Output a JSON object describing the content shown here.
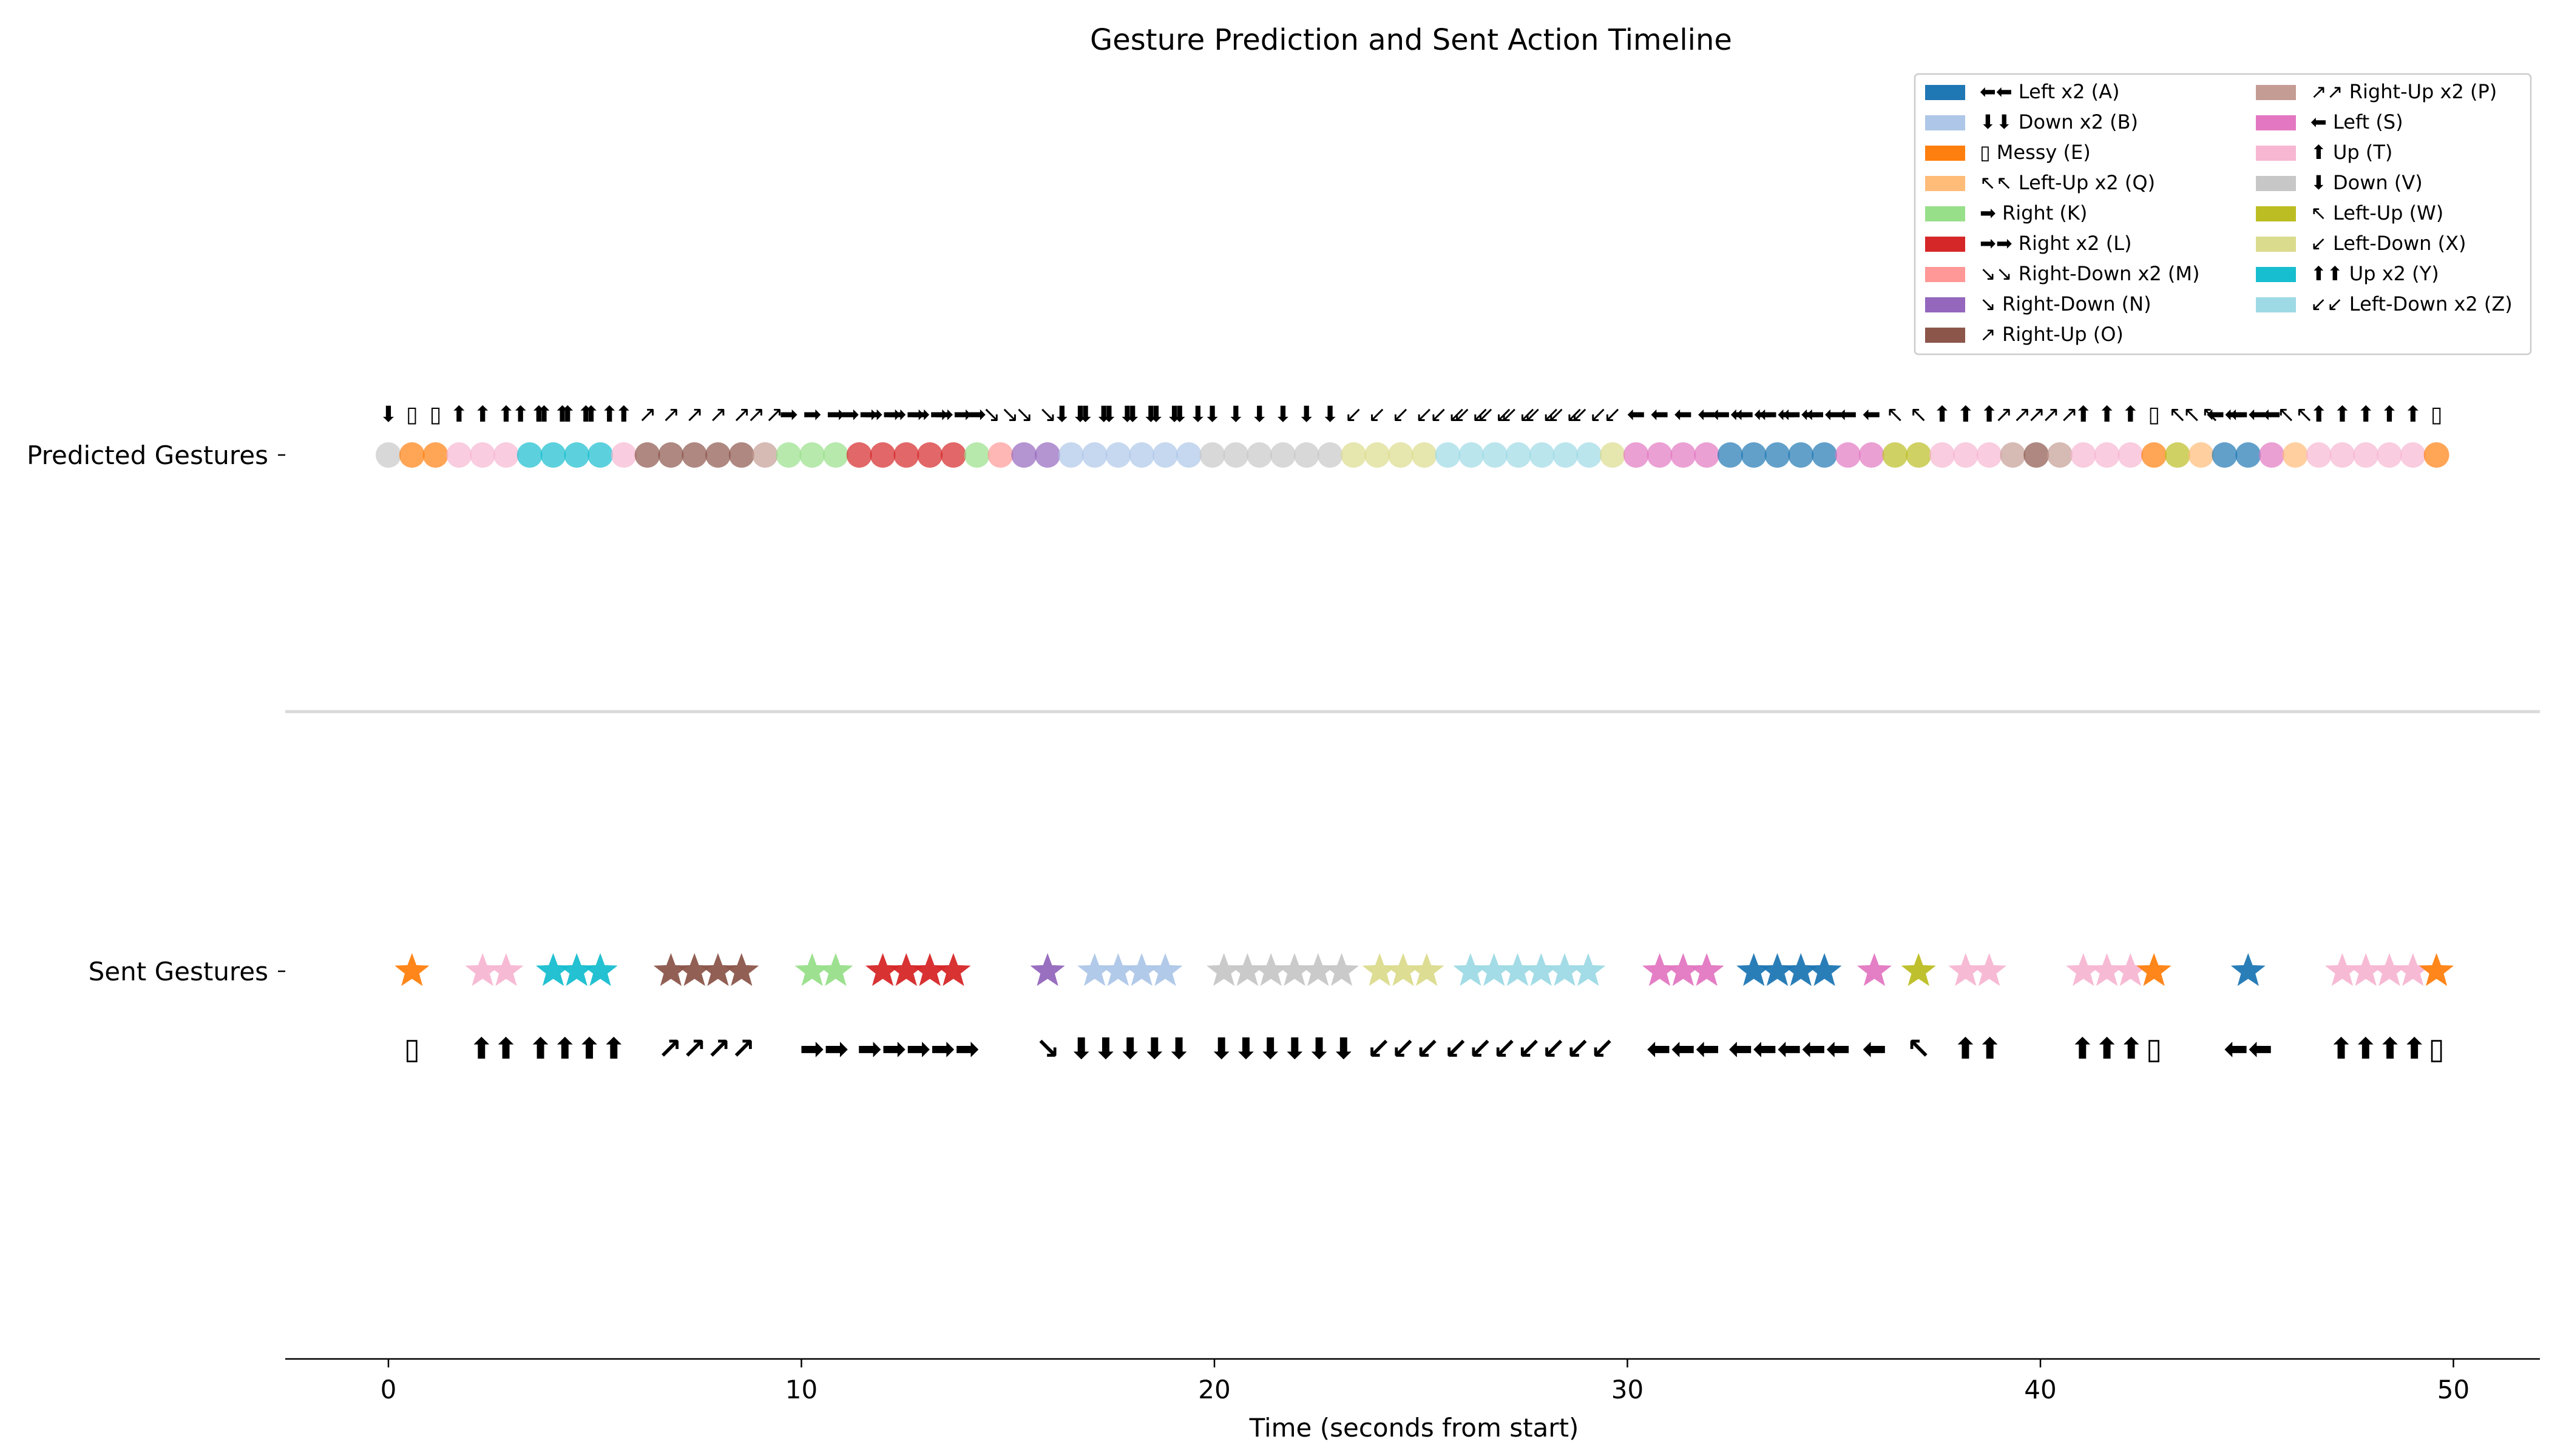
{
  "chart_data": {
    "type": "scatter",
    "title": "Gesture Prediction and Sent Action Timeline",
    "xlabel": "Time (seconds from start)",
    "ylabel": "",
    "xlim": [
      -2.5,
      52.0
    ],
    "x_ticks": [
      0,
      10,
      20,
      30,
      40,
      50
    ],
    "y_categories": [
      "Predicted Gestures",
      "Sent Gestures"
    ],
    "grid": false,
    "legend_position": "top-right",
    "legend": [
      {
        "code": "A",
        "label": "⬅⬅ Left x2 (A)",
        "color": "#1f77b4"
      },
      {
        "code": "B",
        "label": "⬇⬇ Down x2 (B)",
        "color": "#aec7e8"
      },
      {
        "code": "E",
        "label": "▯ Messy (E)",
        "color": "#ff7f0e"
      },
      {
        "code": "Q",
        "label": "↖↖ Left-Up x2 (Q)",
        "color": "#ffbb78"
      },
      {
        "code": "K",
        "label": "➡ Right (K)",
        "color": "#98df8a"
      },
      {
        "code": "L",
        "label": "➡➡ Right x2 (L)",
        "color": "#d62728"
      },
      {
        "code": "M",
        "label": "↘↘ Right-Down x2 (M)",
        "color": "#ff9896"
      },
      {
        "code": "N",
        "label": "↘ Right-Down (N)",
        "color": "#9467bd"
      },
      {
        "code": "O",
        "label": "↗ Right-Up (O)",
        "color": "#8c564b"
      },
      {
        "code": "P",
        "label": "↗↗ Right-Up x2 (P)",
        "color": "#c49c94"
      },
      {
        "code": "S",
        "label": "⬅ Left (S)",
        "color": "#e377c2"
      },
      {
        "code": "T",
        "label": "⬆ Up (T)",
        "color": "#f7b6d2"
      },
      {
        "code": "V",
        "label": "⬇ Down (V)",
        "color": "#c7c7c7"
      },
      {
        "code": "W",
        "label": "↖ Left-Up (W)",
        "color": "#bcbd22"
      },
      {
        "code": "X",
        "label": "↙ Left-Down (X)",
        "color": "#dbdb8d"
      },
      {
        "code": "Y",
        "label": "⬆⬆ Up x2 (Y)",
        "color": "#17becf"
      },
      {
        "code": "Z",
        "label": "↙↙ Left-Down x2 (Z)",
        "color": "#9edae5"
      }
    ],
    "symbols": {
      "A": "⬅⬅",
      "B": "⬇⬇",
      "E": "▯",
      "Q": "↖↖",
      "K": "➡",
      "L": "➡➡",
      "M": "↘↘",
      "N": "↘",
      "O": "↗",
      "P": "↗↗",
      "S": "⬅",
      "T": "⬆",
      "V": "⬇",
      "W": "↖",
      "X": "↙",
      "Y": "⬆⬆",
      "Z": "↙↙"
    },
    "predicted": [
      {
        "t": 0.0,
        "g": "V"
      },
      {
        "t": 0.57,
        "g": "E"
      },
      {
        "t": 1.14,
        "g": "E"
      },
      {
        "t": 1.71,
        "g": "T"
      },
      {
        "t": 2.28,
        "g": "T"
      },
      {
        "t": 2.85,
        "g": "T"
      },
      {
        "t": 3.42,
        "g": "Y"
      },
      {
        "t": 3.99,
        "g": "Y"
      },
      {
        "t": 4.56,
        "g": "Y"
      },
      {
        "t": 5.13,
        "g": "Y"
      },
      {
        "t": 5.7,
        "g": "T"
      },
      {
        "t": 6.27,
        "g": "O"
      },
      {
        "t": 6.84,
        "g": "O"
      },
      {
        "t": 7.41,
        "g": "O"
      },
      {
        "t": 7.98,
        "g": "O"
      },
      {
        "t": 8.55,
        "g": "O"
      },
      {
        "t": 9.12,
        "g": "P"
      },
      {
        "t": 9.69,
        "g": "K"
      },
      {
        "t": 10.26,
        "g": "K"
      },
      {
        "t": 10.83,
        "g": "K"
      },
      {
        "t": 11.4,
        "g": "L"
      },
      {
        "t": 11.97,
        "g": "L"
      },
      {
        "t": 12.54,
        "g": "L"
      },
      {
        "t": 13.11,
        "g": "L"
      },
      {
        "t": 13.68,
        "g": "L"
      },
      {
        "t": 14.25,
        "g": "K"
      },
      {
        "t": 14.82,
        "g": "M"
      },
      {
        "t": 15.39,
        "g": "N"
      },
      {
        "t": 15.96,
        "g": "N"
      },
      {
        "t": 16.53,
        "g": "B"
      },
      {
        "t": 17.1,
        "g": "B"
      },
      {
        "t": 17.67,
        "g": "B"
      },
      {
        "t": 18.24,
        "g": "B"
      },
      {
        "t": 18.81,
        "g": "B"
      },
      {
        "t": 19.38,
        "g": "B"
      },
      {
        "t": 19.95,
        "g": "V"
      },
      {
        "t": 20.52,
        "g": "V"
      },
      {
        "t": 21.09,
        "g": "V"
      },
      {
        "t": 21.66,
        "g": "V"
      },
      {
        "t": 22.23,
        "g": "V"
      },
      {
        "t": 22.8,
        "g": "V"
      },
      {
        "t": 23.37,
        "g": "X"
      },
      {
        "t": 23.94,
        "g": "X"
      },
      {
        "t": 24.51,
        "g": "X"
      },
      {
        "t": 25.08,
        "g": "X"
      },
      {
        "t": 25.65,
        "g": "Z"
      },
      {
        "t": 26.22,
        "g": "Z"
      },
      {
        "t": 26.79,
        "g": "Z"
      },
      {
        "t": 27.36,
        "g": "Z"
      },
      {
        "t": 27.93,
        "g": "Z"
      },
      {
        "t": 28.5,
        "g": "Z"
      },
      {
        "t": 29.07,
        "g": "Z"
      },
      {
        "t": 29.64,
        "g": "X"
      },
      {
        "t": 30.21,
        "g": "S"
      },
      {
        "t": 30.78,
        "g": "S"
      },
      {
        "t": 31.35,
        "g": "S"
      },
      {
        "t": 31.92,
        "g": "S"
      },
      {
        "t": 32.49,
        "g": "A"
      },
      {
        "t": 33.06,
        "g": "A"
      },
      {
        "t": 33.63,
        "g": "A"
      },
      {
        "t": 34.2,
        "g": "A"
      },
      {
        "t": 34.77,
        "g": "A"
      },
      {
        "t": 35.34,
        "g": "S"
      },
      {
        "t": 35.91,
        "g": "S"
      },
      {
        "t": 36.48,
        "g": "W"
      },
      {
        "t": 37.05,
        "g": "W"
      },
      {
        "t": 37.62,
        "g": "T"
      },
      {
        "t": 38.19,
        "g": "T"
      },
      {
        "t": 38.76,
        "g": "T"
      },
      {
        "t": 39.33,
        "g": "P"
      },
      {
        "t": 39.9,
        "g": "O"
      },
      {
        "t": 40.47,
        "g": "P"
      },
      {
        "t": 41.04,
        "g": "T"
      },
      {
        "t": 41.61,
        "g": "T"
      },
      {
        "t": 42.18,
        "g": "T"
      },
      {
        "t": 42.75,
        "g": "E"
      },
      {
        "t": 43.32,
        "g": "W"
      },
      {
        "t": 43.89,
        "g": "Q"
      },
      {
        "t": 44.46,
        "g": "A"
      },
      {
        "t": 45.03,
        "g": "A"
      },
      {
        "t": 45.6,
        "g": "S"
      },
      {
        "t": 46.17,
        "g": "Q"
      },
      {
        "t": 46.74,
        "g": "T"
      },
      {
        "t": 47.31,
        "g": "T"
      },
      {
        "t": 47.88,
        "g": "T"
      },
      {
        "t": 48.45,
        "g": "T"
      },
      {
        "t": 49.02,
        "g": "T"
      },
      {
        "t": 49.59,
        "g": "E"
      }
    ],
    "sent": [
      {
        "t": 0.57,
        "g": "E"
      },
      {
        "t": 2.28,
        "g": "T"
      },
      {
        "t": 2.85,
        "g": "T"
      },
      {
        "t": 3.99,
        "g": "Y"
      },
      {
        "t": 4.56,
        "g": "Y"
      },
      {
        "t": 5.13,
        "g": "Y"
      },
      {
        "t": 6.84,
        "g": "O"
      },
      {
        "t": 7.41,
        "g": "O"
      },
      {
        "t": 7.98,
        "g": "O"
      },
      {
        "t": 8.55,
        "g": "O"
      },
      {
        "t": 10.26,
        "g": "K"
      },
      {
        "t": 10.83,
        "g": "K"
      },
      {
        "t": 11.97,
        "g": "L"
      },
      {
        "t": 12.54,
        "g": "L"
      },
      {
        "t": 13.11,
        "g": "L"
      },
      {
        "t": 13.68,
        "g": "L"
      },
      {
        "t": 15.96,
        "g": "N"
      },
      {
        "t": 17.1,
        "g": "B"
      },
      {
        "t": 17.67,
        "g": "B"
      },
      {
        "t": 18.24,
        "g": "B"
      },
      {
        "t": 18.81,
        "g": "B"
      },
      {
        "t": 20.23,
        "g": "V"
      },
      {
        "t": 20.8,
        "g": "V"
      },
      {
        "t": 21.37,
        "g": "V"
      },
      {
        "t": 21.94,
        "g": "V"
      },
      {
        "t": 22.51,
        "g": "V"
      },
      {
        "t": 23.08,
        "g": "V"
      },
      {
        "t": 24.0,
        "g": "X"
      },
      {
        "t": 24.57,
        "g": "X"
      },
      {
        "t": 25.14,
        "g": "X"
      },
      {
        "t": 26.2,
        "g": "Z"
      },
      {
        "t": 26.77,
        "g": "Z"
      },
      {
        "t": 27.34,
        "g": "Z"
      },
      {
        "t": 27.91,
        "g": "Z"
      },
      {
        "t": 28.48,
        "g": "Z"
      },
      {
        "t": 29.05,
        "g": "Z"
      },
      {
        "t": 30.78,
        "g": "S"
      },
      {
        "t": 31.35,
        "g": "S"
      },
      {
        "t": 31.92,
        "g": "S"
      },
      {
        "t": 33.06,
        "g": "A"
      },
      {
        "t": 33.63,
        "g": "A"
      },
      {
        "t": 34.2,
        "g": "A"
      },
      {
        "t": 34.77,
        "g": "A"
      },
      {
        "t": 35.98,
        "g": "S"
      },
      {
        "t": 37.05,
        "g": "W"
      },
      {
        "t": 38.19,
        "g": "T"
      },
      {
        "t": 38.76,
        "g": "T"
      },
      {
        "t": 41.04,
        "g": "T"
      },
      {
        "t": 41.61,
        "g": "T"
      },
      {
        "t": 42.18,
        "g": "T"
      },
      {
        "t": 42.75,
        "g": "E"
      },
      {
        "t": 45.03,
        "g": "A"
      },
      {
        "t": 47.31,
        "g": "T"
      },
      {
        "t": 47.88,
        "g": "T"
      },
      {
        "t": 48.45,
        "g": "T"
      },
      {
        "t": 49.02,
        "g": "T"
      },
      {
        "t": 49.59,
        "g": "E"
      }
    ],
    "sent_text_groups": [
      {
        "t": 0.57,
        "text": "▯"
      },
      {
        "t": 2.55,
        "text": "⬆⬆"
      },
      {
        "t": 4.57,
        "text": "⬆⬆⬆⬆"
      },
      {
        "t": 7.7,
        "text": "↗↗↗↗"
      },
      {
        "t": 10.55,
        "text": "➡➡"
      },
      {
        "t": 12.83,
        "text": "➡➡➡➡➡"
      },
      {
        "t": 15.96,
        "text": "↘"
      },
      {
        "t": 17.96,
        "text": "⬇⬇⬇⬇⬇"
      },
      {
        "t": 21.65,
        "text": "⬇⬇⬇⬇⬇⬇"
      },
      {
        "t": 24.57,
        "text": "↙↙↙"
      },
      {
        "t": 27.62,
        "text": "↙↙↙↙↙↙↙"
      },
      {
        "t": 31.35,
        "text": "⬅⬅⬅"
      },
      {
        "t": 33.92,
        "text": "⬅⬅⬅⬅⬅"
      },
      {
        "t": 35.98,
        "text": "⬅"
      },
      {
        "t": 37.05,
        "text": "↖"
      },
      {
        "t": 38.48,
        "text": "⬆⬆"
      },
      {
        "t": 41.61,
        "text": "⬆⬆⬆"
      },
      {
        "t": 42.75,
        "text": "▯"
      },
      {
        "t": 45.03,
        "text": "⬅⬅"
      },
      {
        "t": 48.17,
        "text": "⬆⬆⬆⬆"
      },
      {
        "t": 49.59,
        "text": "▯"
      }
    ]
  }
}
